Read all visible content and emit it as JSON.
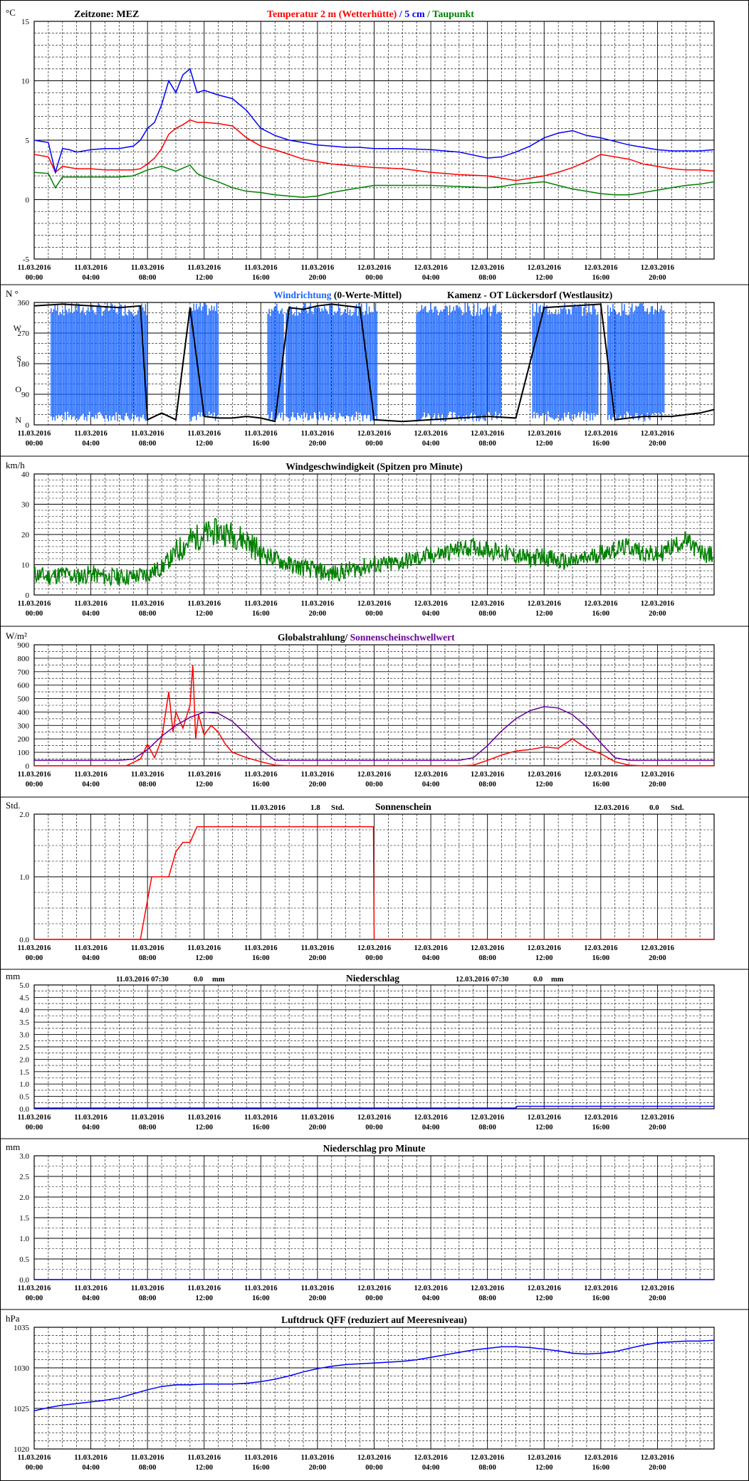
{
  "colors": {
    "background": "#ffffff",
    "axis": "#000000",
    "grid": "#000000",
    "temp_2m": "#ff0000",
    "temp_5cm": "#0000ff",
    "dewpoint": "#008000",
    "wind_dir_mean": "#1a66ff",
    "wind_dir_black": "#000000",
    "wind_speed": "#008000",
    "radiation": "#ff0000",
    "sun_threshold": "#660099",
    "sunshine": "#ff0000",
    "precip": "#0000ff",
    "pressure": "#0000ff"
  },
  "x_axis": {
    "tick_dates": [
      "11.03.2016",
      "11.03.2016",
      "11.03.2016",
      "11.03.2016",
      "11.03.2016",
      "11.03.2016",
      "12.03.2016",
      "12.03.2016",
      "12.03.2016",
      "12.03.2016",
      "12.03.2016",
      "12.03.2016"
    ],
    "tick_times": [
      "00:00",
      "04:00",
      "08:00",
      "12:00",
      "16:00",
      "20:00",
      "00:00",
      "04:00",
      "08:00",
      "12:00",
      "16:00",
      "20:00"
    ],
    "hours_total": 48,
    "tick_step_hours": 4
  },
  "chart_data": [
    {
      "id": "temperature",
      "type": "line",
      "unit_label": "°C",
      "timezone_label": "Zeitzone: MEZ",
      "title_parts": [
        "Temperatur 2 m (Wetterhütte)",
        "  /  ",
        "5 cm",
        " / ",
        "Taupunkt"
      ],
      "ylim": [
        -5,
        15
      ],
      "y_ticks": [
        "15",
        "10",
        "5",
        "0",
        "-5"
      ],
      "y_tick_values": [
        15,
        10,
        5,
        0,
        -5
      ],
      "series": [
        {
          "name": "Temperatur 2 m (Wetterhütte)",
          "color_key": "temp_2m",
          "x": [
            0,
            1,
            1.5,
            2,
            2.5,
            3,
            4,
            5,
            6,
            7,
            7.5,
            8,
            8.5,
            9,
            9.5,
            10,
            10.5,
            11,
            11.5,
            12,
            13,
            14,
            15,
            16,
            17,
            18,
            19,
            20,
            21,
            22,
            23,
            24,
            26,
            28,
            30,
            32,
            33,
            34,
            35,
            36,
            37,
            38,
            39,
            40,
            41,
            42,
            43,
            44,
            45,
            46,
            47,
            48
          ],
          "y": [
            3.8,
            3.6,
            2.3,
            2.8,
            2.7,
            2.6,
            2.6,
            2.5,
            2.5,
            2.5,
            2.6,
            3,
            3.5,
            4.3,
            5.5,
            6,
            6.3,
            6.7,
            6.5,
            6.5,
            6.4,
            6.2,
            5.2,
            4.5,
            4.2,
            3.8,
            3.4,
            3.2,
            3.0,
            2.9,
            2.8,
            2.7,
            2.6,
            2.3,
            2.1,
            2.0,
            1.8,
            1.6,
            1.8,
            2.0,
            2.3,
            2.7,
            3.2,
            3.8,
            3.6,
            3.4,
            3.0,
            2.8,
            2.6,
            2.5,
            2.5,
            2.4
          ]
        },
        {
          "name": "5 cm",
          "color_key": "temp_5cm",
          "x": [
            0,
            1,
            1.5,
            2,
            2.5,
            3,
            4,
            5,
            6,
            7,
            7.5,
            8,
            8.5,
            9,
            9.5,
            10,
            10.5,
            11,
            11.5,
            12,
            13,
            14,
            15,
            16,
            17,
            18,
            19,
            20,
            21,
            22,
            23,
            24,
            26,
            28,
            30,
            32,
            33,
            34,
            35,
            36,
            37,
            38,
            39,
            40,
            41,
            42,
            43,
            44,
            45,
            46,
            47,
            48
          ],
          "y": [
            5.0,
            4.8,
            2.3,
            4.3,
            4.2,
            4.0,
            4.2,
            4.3,
            4.3,
            4.5,
            5.0,
            6.0,
            6.5,
            8.0,
            10.0,
            9.0,
            10.5,
            11.0,
            9.0,
            9.2,
            8.8,
            8.5,
            7.5,
            6.0,
            5.4,
            5.0,
            4.8,
            4.6,
            4.5,
            4.4,
            4.4,
            4.3,
            4.3,
            4.2,
            4.0,
            3.5,
            3.6,
            4.0,
            4.5,
            5.2,
            5.6,
            5.8,
            5.4,
            5.2,
            4.9,
            4.6,
            4.4,
            4.2,
            4.1,
            4.1,
            4.1,
            4.2
          ]
        },
        {
          "name": "Taupunkt",
          "color_key": "dewpoint",
          "x": [
            0,
            1,
            1.5,
            2,
            3,
            4,
            6,
            7,
            8,
            9,
            10,
            11,
            11.5,
            12,
            13,
            14,
            15,
            16,
            17,
            18,
            19,
            20,
            21,
            22,
            23,
            24,
            26,
            28,
            30,
            32,
            33,
            34,
            35,
            36,
            37,
            38,
            39,
            40,
            41,
            42,
            43,
            44,
            45,
            46,
            47,
            48
          ],
          "y": [
            2.3,
            2.2,
            1.0,
            1.9,
            1.9,
            1.9,
            1.9,
            2.0,
            2.5,
            2.8,
            2.4,
            2.9,
            2.2,
            1.9,
            1.5,
            1.0,
            0.7,
            0.6,
            0.4,
            0.3,
            0.2,
            0.3,
            0.6,
            0.8,
            1.0,
            1.2,
            1.2,
            1.2,
            1.1,
            1.0,
            1.1,
            1.3,
            1.4,
            1.5,
            1.2,
            0.9,
            0.7,
            0.5,
            0.4,
            0.4,
            0.6,
            0.8,
            1.0,
            1.2,
            1.3,
            1.5
          ]
        }
      ]
    },
    {
      "id": "wind_direction",
      "type": "line",
      "unit_label": "N °",
      "title_colored": "Windrichtung",
      "title_rest": "(0-Werte-Mittel)",
      "station": "Kamenz - OT Lückersdorf (Westlausitz)",
      "ylim": [
        0,
        360
      ],
      "y_ticks": [
        "360",
        "270",
        "180",
        "90",
        "0"
      ],
      "y_tick_values": [
        360,
        270,
        180,
        90,
        0
      ],
      "y_dir_labels": [
        "W",
        "S",
        "O",
        "N"
      ],
      "y_dir_values": [
        270,
        180,
        90,
        0
      ],
      "series": [
        {
          "name": "Windrichtung",
          "color_key": "wind_dir_black",
          "x": [
            0,
            2,
            4,
            6,
            7.5,
            8,
            9,
            10,
            11,
            12,
            13,
            14,
            15,
            16,
            17,
            18,
            19,
            20,
            21,
            22,
            23,
            24,
            26,
            28,
            30,
            32,
            34,
            36,
            38,
            40,
            41,
            42,
            43,
            44,
            45,
            46,
            47,
            48
          ],
          "y": [
            350,
            355,
            350,
            345,
            350,
            15,
            35,
            15,
            345,
            25,
            20,
            20,
            25,
            20,
            10,
            345,
            340,
            350,
            355,
            350,
            345,
            15,
            10,
            15,
            20,
            25,
            20,
            345,
            350,
            355,
            15,
            20,
            25,
            25,
            25,
            30,
            35,
            45
          ]
        }
      ]
    },
    {
      "id": "wind_speed",
      "type": "line",
      "unit_label": "km/h",
      "title": "Windgeschwindigkeit (Spitzen pro Minute)",
      "ylim": [
        0,
        40
      ],
      "y_ticks": [
        "40",
        "30",
        "20",
        "10",
        "0"
      ],
      "y_tick_values": [
        40,
        30,
        20,
        10,
        0
      ],
      "series": [
        {
          "name": "Windgeschwindigkeit",
          "color_key": "wind_speed",
          "x": [
            0,
            1,
            2,
            3,
            4,
            5,
            6,
            7,
            8,
            9,
            10,
            11,
            12,
            13,
            14,
            15,
            16,
            17,
            18,
            19,
            20,
            21,
            22,
            23,
            24,
            25,
            26,
            27,
            28,
            29,
            30,
            31,
            32,
            33,
            34,
            35,
            36,
            37,
            38,
            39,
            40,
            41,
            42,
            43,
            44,
            45,
            46,
            47,
            48
          ],
          "y": [
            7,
            6,
            7,
            6,
            7,
            6,
            6,
            6,
            7,
            9,
            14,
            18,
            20,
            21,
            20,
            18,
            14,
            12,
            10,
            9,
            8,
            7,
            8,
            9,
            10,
            10,
            11,
            12,
            13,
            14,
            15,
            16,
            15,
            14,
            13,
            12,
            13,
            11,
            11,
            12,
            14,
            15,
            16,
            14,
            13,
            16,
            18,
            14,
            13
          ]
        }
      ]
    },
    {
      "id": "radiation",
      "type": "line",
      "unit_label": "W/m²",
      "title_part1": "Globalstrahlung/ ",
      "title_part2": "Sonnenscheinschwellwert",
      "ylim": [
        0,
        900
      ],
      "y_ticks": [
        "900",
        "800",
        "700",
        "600",
        "500",
        "400",
        "300",
        "200",
        "100",
        "0"
      ],
      "y_tick_values": [
        900,
        800,
        700,
        600,
        500,
        400,
        300,
        200,
        100,
        0
      ],
      "series": [
        {
          "name": "Globalstrahlung",
          "color_key": "radiation",
          "x": [
            0,
            6.5,
            7.5,
            8,
            8.5,
            9,
            9.5,
            9.8,
            10,
            10.5,
            11,
            11.2,
            11.4,
            11.6,
            12,
            12.5,
            13,
            13.5,
            14,
            15,
            16,
            17,
            18,
            30,
            31,
            32,
            33,
            34,
            35,
            36,
            37,
            38,
            39,
            40,
            41,
            42,
            43,
            48
          ],
          "y": [
            0,
            0,
            50,
            160,
            60,
            200,
            550,
            250,
            400,
            280,
            450,
            750,
            200,
            380,
            230,
            300,
            250,
            160,
            100,
            60,
            30,
            5,
            0,
            0,
            5,
            40,
            80,
            110,
            120,
            140,
            130,
            200,
            130,
            90,
            30,
            5,
            0,
            0
          ]
        },
        {
          "name": "Sonnenscheinschwellwert",
          "color_key": "sun_threshold",
          "x": [
            0,
            6,
            7,
            8,
            9,
            10,
            11,
            12,
            13,
            14,
            15,
            16,
            17,
            30,
            31,
            32,
            33,
            34,
            35,
            36,
            37,
            38,
            39,
            40,
            41,
            42,
            48
          ],
          "y": [
            40,
            40,
            50,
            120,
            220,
            300,
            360,
            400,
            390,
            330,
            230,
            120,
            40,
            40,
            60,
            150,
            260,
            350,
            410,
            440,
            430,
            380,
            290,
            170,
            60,
            40,
            40
          ]
        }
      ]
    },
    {
      "id": "sunshine",
      "type": "line",
      "unit_label": "Std.",
      "title": "Sonnenschein",
      "day1_date": "11.03.2016",
      "day1_value": "1.8",
      "day1_unit": "Std.",
      "day2_date": "12.03.2016",
      "day2_value": "0.0",
      "day2_unit": "Std.",
      "ylim": [
        0,
        2
      ],
      "y_ticks": [
        "2.0",
        "1.0",
        "0.0"
      ],
      "y_tick_values": [
        2,
        1,
        0
      ],
      "series": [
        {
          "name": "Sonnenschein",
          "color_key": "sunshine",
          "x": [
            0,
            7.5,
            8.3,
            9.5,
            10,
            10.5,
            11,
            11.3,
            11.5,
            12,
            12.5,
            23.95,
            24,
            48
          ],
          "y": [
            0,
            0,
            1.0,
            1.0,
            1.4,
            1.55,
            1.55,
            1.7,
            1.8,
            1.8,
            1.8,
            1.8,
            0,
            0
          ]
        }
      ]
    },
    {
      "id": "precipitation",
      "type": "line",
      "unit_label": "mm",
      "title": "Niederschlag",
      "day1_label": "11.03.2016 07:30",
      "day1_value": "0.0",
      "day1_unit": "mm",
      "day2_label": "12.03.2016 07:30",
      "day2_value": "0.0",
      "day2_unit": "mm",
      "ylim": [
        0,
        5
      ],
      "y_ticks": [
        "5.0",
        "4.5",
        "4.0",
        "3.5",
        "3.0",
        "2.5",
        "2.0",
        "1.5",
        "1.0",
        "0.5",
        "0.0"
      ],
      "y_tick_values": [
        5,
        4.5,
        4,
        3.5,
        3,
        2.5,
        2,
        1.5,
        1,
        0.5,
        0
      ],
      "series": [
        {
          "name": "Niederschlag",
          "color_key": "precip",
          "x": [
            0,
            34,
            34.1,
            48
          ],
          "y": [
            0.03,
            0.03,
            0.1,
            0.1
          ]
        }
      ]
    },
    {
      "id": "precipitation_per_minute",
      "type": "line",
      "unit_label": "mm",
      "title": "Niederschlag pro Minute",
      "ylim": [
        0,
        3
      ],
      "y_ticks": [
        "3.0",
        "2.5",
        "2.0",
        "1.5",
        "1.0",
        "0.5",
        "0.0"
      ],
      "y_tick_values": [
        3,
        2.5,
        2,
        1.5,
        1,
        0.5,
        0
      ],
      "series": [
        {
          "name": "Niederschlag pro Minute",
          "color_key": "precip",
          "x": [
            0,
            48
          ],
          "y": [
            0,
            0
          ]
        }
      ]
    },
    {
      "id": "pressure",
      "type": "line",
      "unit_label": "hPa",
      "title": "Luftdruck QFF (reduziert auf Meeresniveau)",
      "ylim": [
        1020,
        1035
      ],
      "y_ticks": [
        "1035",
        "1030",
        "1025",
        "1020"
      ],
      "y_tick_values": [
        1035,
        1030,
        1025,
        1020
      ],
      "series": [
        {
          "name": "Luftdruck QFF",
          "color_key": "pressure",
          "x": [
            0,
            1,
            2,
            3,
            4,
            5,
            6,
            7,
            8,
            9,
            10,
            11,
            12,
            13,
            14,
            15,
            16,
            17,
            18,
            19,
            20,
            21,
            22,
            23,
            24,
            25,
            26,
            27,
            28,
            29,
            30,
            31,
            32,
            33,
            34,
            35,
            36,
            37,
            38,
            39,
            40,
            41,
            42,
            43,
            44,
            45,
            46,
            47,
            48
          ],
          "y": [
            1024.7,
            1025.1,
            1025.4,
            1025.6,
            1025.8,
            1026.0,
            1026.3,
            1026.8,
            1027.3,
            1027.7,
            1027.9,
            1027.9,
            1028.0,
            1028.0,
            1028.0,
            1028.1,
            1028.3,
            1028.6,
            1029.0,
            1029.5,
            1029.9,
            1030.2,
            1030.4,
            1030.5,
            1030.6,
            1030.7,
            1030.8,
            1031.0,
            1031.3,
            1031.6,
            1031.9,
            1032.2,
            1032.4,
            1032.6,
            1032.6,
            1032.5,
            1032.3,
            1032.1,
            1031.8,
            1031.7,
            1031.8,
            1032.0,
            1032.4,
            1032.8,
            1033.1,
            1033.2,
            1033.3,
            1033.3,
            1033.4
          ]
        }
      ]
    }
  ]
}
